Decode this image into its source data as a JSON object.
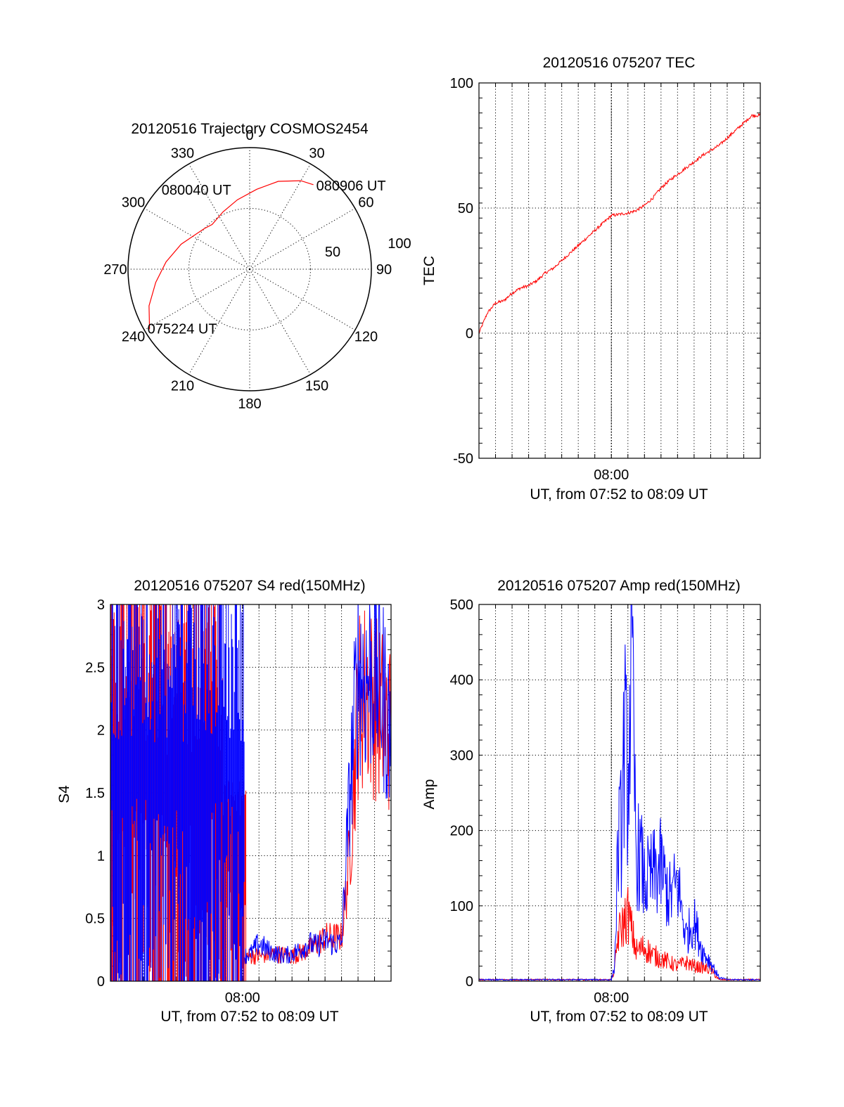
{
  "colors": {
    "red": "#ff0000",
    "blue": "#0000ff",
    "axis": "#000000"
  },
  "chart_data": [
    {
      "type": "polar",
      "title": "20120516 Trajectory COSMOS2454",
      "azimuth_labels": [
        "0",
        "30",
        "60",
        "90",
        "120",
        "150",
        "180",
        "210",
        "240",
        "270",
        "300",
        "330"
      ],
      "radial_labels": [
        "50",
        "100"
      ],
      "rlim": [
        0,
        100
      ],
      "trajectory": {
        "color": "#ff0000",
        "points": [
          {
            "az": 239,
            "r": 96
          },
          {
            "az": 250,
            "r": 88
          },
          {
            "az": 262,
            "r": 78
          },
          {
            "az": 275,
            "r": 69
          },
          {
            "az": 290,
            "r": 60
          },
          {
            "az": 305,
            "r": 52
          },
          {
            "az": 312,
            "r": 50
          },
          {
            "az": 320,
            "r": 48
          },
          {
            "az": 335,
            "r": 52
          },
          {
            "az": 350,
            "r": 58
          },
          {
            "az": 5,
            "r": 66
          },
          {
            "az": 18,
            "r": 76
          },
          {
            "az": 30,
            "r": 84
          },
          {
            "az": 37,
            "r": 87
          }
        ]
      },
      "annotations": [
        {
          "text": "080906 UT",
          "az": 37,
          "r": 87
        },
        {
          "text": "080040 UT",
          "az": 313,
          "r": 50
        },
        {
          "text": "075224 UT",
          "az": 239,
          "r": 96
        }
      ]
    },
    {
      "type": "line",
      "title": "20120516 075207 TEC",
      "ylabel": "TEC",
      "xlabel": "UT, from 07:52 to 08:09 UT",
      "xlim": [
        0,
        17
      ],
      "x_tick_labels": [
        {
          "at": 8,
          "label": "08:00"
        }
      ],
      "ylim": [
        -50,
        100
      ],
      "y_ticks": [
        -50,
        0,
        50,
        100
      ],
      "grid": true,
      "series": [
        {
          "color": "#ff0000",
          "x": [
            0,
            0.5,
            1,
            1.5,
            2,
            2.5,
            3,
            3.5,
            4,
            4.5,
            5,
            5.5,
            6,
            6.5,
            7,
            7.5,
            8,
            8.5,
            9,
            9.5,
            10,
            10.5,
            11,
            11.5,
            12,
            12.5,
            13,
            13.5,
            14,
            14.5,
            15,
            15.5,
            16,
            16.5,
            17
          ],
          "y": [
            0,
            8,
            12,
            13,
            16,
            18,
            19,
            21,
            24,
            26,
            29,
            32,
            35,
            38,
            41,
            44,
            47,
            47.5,
            48,
            49,
            51,
            54,
            58,
            61,
            63.5,
            66,
            68.5,
            71,
            73,
            75,
            78,
            81,
            84,
            87,
            87
          ]
        }
      ]
    },
    {
      "type": "line",
      "title": "20120516 075207 S4 red(150MHz)",
      "ylabel": "S4",
      "xlabel": "UT, from 07:52 to 08:09 UT",
      "xlim": [
        0,
        17
      ],
      "x_tick_labels": [
        {
          "at": 8,
          "label": "08:00"
        }
      ],
      "ylim": [
        0,
        3
      ],
      "y_ticks": [
        0,
        0.5,
        1,
        1.5,
        2,
        2.5,
        3
      ],
      "grid": true,
      "series": [
        {
          "color": "#ff0000",
          "segments": [
            {
              "x0": 0,
              "x1": 6.8,
              "noisy": 3.0,
              "base": 1.4
            },
            {
              "x0": 6.8,
              "x1": 8.2,
              "noisy": 1.0,
              "base": 0.9
            }
          ],
          "x": [
            8.2,
            9,
            10,
            11,
            12,
            13,
            14,
            14.5,
            15,
            15.5,
            16,
            17
          ],
          "y": [
            0.2,
            0.2,
            0.22,
            0.2,
            0.25,
            0.35,
            0.35,
            1.0,
            2.2,
            2.3,
            2.2,
            2.0
          ]
        },
        {
          "color": "#0000ff",
          "segments": [
            {
              "x0": 0,
              "x1": 8.1,
              "noisy": 3.0,
              "base": 1.5
            }
          ],
          "x": [
            8.1,
            8.5,
            9,
            9.5,
            10,
            10.5,
            11,
            11.5,
            12,
            12.5,
            13,
            13.5,
            14,
            14.5,
            15,
            15.5,
            16,
            16.5,
            17
          ],
          "y": [
            0.2,
            0.22,
            0.3,
            0.25,
            0.22,
            0.2,
            0.22,
            0.25,
            0.3,
            0.28,
            0.32,
            0.3,
            0.3,
            1.5,
            2.5,
            2.4,
            2.5,
            2.3,
            1.9
          ]
        }
      ]
    },
    {
      "type": "line",
      "title": "20120516 075207 Amp red(150MHz)",
      "ylabel": "Amp",
      "xlabel": "UT, from 07:52 to 08:09 UT",
      "xlim": [
        0,
        17
      ],
      "x_tick_labels": [
        {
          "at": 8,
          "label": "08:00"
        }
      ],
      "ylim": [
        0,
        500
      ],
      "y_ticks": [
        0,
        100,
        200,
        300,
        400,
        500
      ],
      "grid": true,
      "series": [
        {
          "color": "#ff0000",
          "x": [
            0,
            8.0,
            8.2,
            8.4,
            8.7,
            9.0,
            9.5,
            10,
            10.5,
            11,
            11.5,
            12,
            12.5,
            13,
            13.5,
            14,
            14.5,
            15,
            17
          ],
          "y": [
            2,
            2,
            15,
            60,
            75,
            90,
            40,
            45,
            35,
            30,
            25,
            20,
            25,
            20,
            18,
            15,
            2,
            2,
            2
          ]
        },
        {
          "color": "#0000ff",
          "x": [
            0,
            8.0,
            8.2,
            8.4,
            8.6,
            8.8,
            9.0,
            9.2,
            9.5,
            9.8,
            10,
            10.5,
            11,
            11.5,
            12,
            12.5,
            13,
            13.5,
            14,
            14.5,
            15,
            17
          ],
          "y": [
            2,
            2,
            20,
            180,
            200,
            330,
            250,
            430,
            170,
            160,
            130,
            140,
            150,
            110,
            130,
            60,
            80,
            40,
            25,
            5,
            2,
            2
          ]
        }
      ]
    }
  ]
}
